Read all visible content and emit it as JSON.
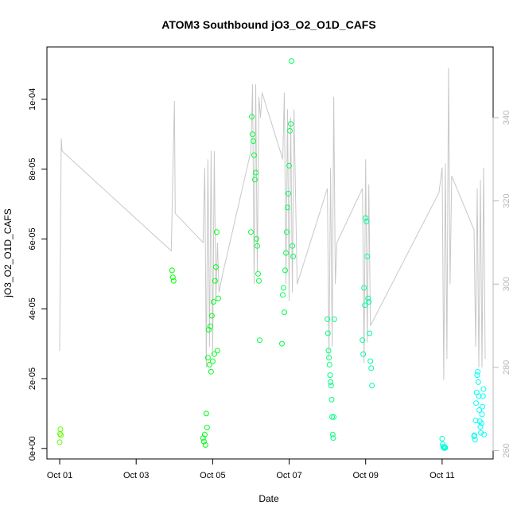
{
  "chart_data": {
    "type": "scatter",
    "title": "ATOM3 Southbound jO3_O2_O1D_CAFS",
    "xlabel": "Date",
    "ylabel": "jO3_O2_O1D_CAFS",
    "x_range": [
      "2017-09-30T16:00",
      "2017-10-12T08:00"
    ],
    "x_ticks": [
      {
        "date": "2017-10-01",
        "label": "Oct 01"
      },
      {
        "date": "2017-10-03",
        "label": "Oct 03"
      },
      {
        "date": "2017-10-05",
        "label": "Oct 05"
      },
      {
        "date": "2017-10-07",
        "label": "Oct 07"
      },
      {
        "date": "2017-10-09",
        "label": "Oct 09"
      },
      {
        "date": "2017-10-11",
        "label": "Oct 11"
      }
    ],
    "y_left": {
      "range": [
        -3e-06,
        0.000115
      ],
      "ticks": [
        {
          "value": 0,
          "label": "0e+00"
        },
        {
          "value": 2e-05,
          "label": "2e-05"
        },
        {
          "value": 4e-05,
          "label": "4e-05"
        },
        {
          "value": 6e-05,
          "label": "6e-05"
        },
        {
          "value": 8e-05,
          "label": "8e-05"
        },
        {
          "value": 0.0001,
          "label": "1e-04"
        }
      ]
    },
    "y_right": {
      "color": "#b8b8b8",
      "range": [
        258,
        357
      ],
      "ticks": [
        {
          "value": 260,
          "label": "260"
        },
        {
          "value": 280,
          "label": "280"
        },
        {
          "value": 300,
          "label": "300"
        },
        {
          "value": 320,
          "label": "320"
        },
        {
          "value": 340,
          "label": "340"
        }
      ]
    },
    "grid": false,
    "marker": "open-circle",
    "color_scale": "green to cyan by time",
    "line_series": {
      "axis": "right",
      "color": "#c8c8c8",
      "points": [
        [
          "2017-10-01T00:00",
          284
        ],
        [
          "2017-10-01T01:00",
          335
        ],
        [
          "2017-10-01T01:30",
          332
        ],
        [
          "2017-10-03T22:00",
          308
        ],
        [
          "2017-10-04T00:00",
          344
        ],
        [
          "2017-10-04T00:30",
          317
        ],
        [
          "2017-10-04T18:00",
          310
        ],
        [
          "2017-10-04T19:00",
          328
        ],
        [
          "2017-10-04T20:00",
          280
        ],
        [
          "2017-10-04T21:00",
          330
        ],
        [
          "2017-10-04T22:00",
          285
        ],
        [
          "2017-10-04T23:00",
          332
        ],
        [
          "2017-10-05T00:00",
          283
        ],
        [
          "2017-10-05T01:00",
          332
        ],
        [
          "2017-10-05T02:00",
          296
        ],
        [
          "2017-10-05T03:00",
          310
        ],
        [
          "2017-10-05T04:00",
          298
        ],
        [
          "2017-10-05T06:00",
          302
        ],
        [
          "2017-10-06T00:00",
          332
        ],
        [
          "2017-10-06T01:00",
          348
        ],
        [
          "2017-10-06T02:00",
          300
        ],
        [
          "2017-10-06T03:00",
          348
        ],
        [
          "2017-10-06T04:00",
          303
        ],
        [
          "2017-10-06T05:00",
          345
        ],
        [
          "2017-10-06T06:00",
          340
        ],
        [
          "2017-10-06T07:00",
          346
        ],
        [
          "2017-10-06T20:00",
          330
        ],
        [
          "2017-10-06T21:00",
          346
        ],
        [
          "2017-10-06T22:00",
          300
        ],
        [
          "2017-10-06T23:00",
          342
        ],
        [
          "2017-10-07T00:00",
          296
        ],
        [
          "2017-10-07T01:00",
          340
        ],
        [
          "2017-10-07T02:00",
          298
        ],
        [
          "2017-10-07T03:00",
          342
        ],
        [
          "2017-10-07T05:00",
          300
        ],
        [
          "2017-10-08T00:00",
          323
        ],
        [
          "2017-10-08T01:00",
          282
        ],
        [
          "2017-10-08T02:00",
          328
        ],
        [
          "2017-10-08T03:00",
          285
        ],
        [
          "2017-10-08T04:00",
          345
        ],
        [
          "2017-10-08T05:00",
          300
        ],
        [
          "2017-10-08T06:00",
          310
        ],
        [
          "2017-10-08T22:00",
          323
        ],
        [
          "2017-10-08T23:00",
          281
        ],
        [
          "2017-10-09T00:00",
          330
        ],
        [
          "2017-10-09T01:00",
          286
        ],
        [
          "2017-10-09T02:00",
          324
        ],
        [
          "2017-10-09T03:00",
          290
        ],
        [
          "2017-10-10T22:00",
          322
        ],
        [
          "2017-10-11T00:00",
          328
        ],
        [
          "2017-10-11T01:00",
          277
        ],
        [
          "2017-10-11T02:00",
          329
        ],
        [
          "2017-10-11T03:00",
          282
        ],
        [
          "2017-10-11T04:00",
          352
        ],
        [
          "2017-10-11T05:00",
          300
        ],
        [
          "2017-10-11T06:00",
          326
        ],
        [
          "2017-10-11T20:00",
          313
        ],
        [
          "2017-10-11T21:00",
          285
        ],
        [
          "2017-10-11T22:00",
          323
        ],
        [
          "2017-10-11T23:00",
          280
        ],
        [
          "2017-10-12T00:00",
          325
        ],
        [
          "2017-10-12T01:00",
          280
        ],
        [
          "2017-10-12T02:00",
          328
        ],
        [
          "2017-10-12T03:00",
          282
        ]
      ]
    },
    "points": [
      [
        "2017-10-01T00:00",
        1.8e-06
      ],
      [
        "2017-10-01T00:15",
        4.2e-06
      ],
      [
        "2017-10-01T00:30",
        5.5e-06
      ],
      [
        "2017-10-01T00:45",
        3.8e-06
      ],
      [
        "2017-10-03T22:30",
        5.1e-05
      ],
      [
        "2017-10-03T23:00",
        4.9e-05
      ],
      [
        "2017-10-03T23:30",
        4.8e-05
      ],
      [
        "2017-10-04T18:00",
        3e-06
      ],
      [
        "2017-10-04T18:30",
        2e-06
      ],
      [
        "2017-10-04T19:00",
        4e-06
      ],
      [
        "2017-10-04T19:30",
        1e-06
      ],
      [
        "2017-10-04T20:00",
        1e-05
      ],
      [
        "2017-10-04T20:30",
        6e-06
      ],
      [
        "2017-10-04T21:00",
        2.6e-05
      ],
      [
        "2017-10-04T21:30",
        3.4e-05
      ],
      [
        "2017-10-04T22:00",
        2.4e-05
      ],
      [
        "2017-10-04T22:30",
        3.5e-05
      ],
      [
        "2017-10-04T23:00",
        2.2e-05
      ],
      [
        "2017-10-04T23:30",
        3.8e-05
      ],
      [
        "2017-10-05T00:00",
        2.5e-05
      ],
      [
        "2017-10-05T00:30",
        4.2e-05
      ],
      [
        "2017-10-05T01:00",
        2.7e-05
      ],
      [
        "2017-10-05T01:30",
        4.8e-05
      ],
      [
        "2017-10-05T02:00",
        5.2e-05
      ],
      [
        "2017-10-05T02:30",
        6.2e-05
      ],
      [
        "2017-10-05T03:00",
        2.8e-05
      ],
      [
        "2017-10-05T03:30",
        4.3e-05
      ],
      [
        "2017-10-06T00:00",
        6.2e-05
      ],
      [
        "2017-10-06T00:30",
        9.5e-05
      ],
      [
        "2017-10-06T01:00",
        9e-05
      ],
      [
        "2017-10-06T01:30",
        8.8e-05
      ],
      [
        "2017-10-06T02:00",
        8.4e-05
      ],
      [
        "2017-10-06T02:30",
        7.7e-05
      ],
      [
        "2017-10-06T03:00",
        7.9e-05
      ],
      [
        "2017-10-06T03:30",
        6e-05
      ],
      [
        "2017-10-06T04:00",
        5.8e-05
      ],
      [
        "2017-10-06T04:30",
        5e-05
      ],
      [
        "2017-10-06T05:00",
        4.8e-05
      ],
      [
        "2017-10-06T05:30",
        3.1e-05
      ],
      [
        "2017-10-06T20:00",
        4.4e-05
      ],
      [
        "2017-10-06T20:30",
        4.6e-05
      ],
      [
        "2017-10-06T21:00",
        3.9e-05
      ],
      [
        "2017-10-06T21:30",
        5.1e-05
      ],
      [
        "2017-10-06T22:00",
        5.6e-05
      ],
      [
        "2017-10-06T22:30",
        6.2e-05
      ],
      [
        "2017-10-06T23:00",
        6.9e-05
      ],
      [
        "2017-10-06T23:30",
        7.3e-05
      ],
      [
        "2017-10-07T00:00",
        8.1e-05
      ],
      [
        "2017-10-07T00:30",
        9.1e-05
      ],
      [
        "2017-10-07T01:00",
        9.3e-05
      ],
      [
        "2017-10-07T01:30",
        0.000111
      ],
      [
        "2017-10-07T02:00",
        5.8e-05
      ],
      [
        "2017-10-07T02:30",
        5.5e-05
      ],
      [
        "2017-10-06T19:30",
        3e-05
      ],
      [
        "2017-10-08T00:00",
        3.7e-05
      ],
      [
        "2017-10-08T00:20",
        3.3e-05
      ],
      [
        "2017-10-08T00:40",
        2.8e-05
      ],
      [
        "2017-10-08T01:00",
        2.6e-05
      ],
      [
        "2017-10-08T01:20",
        2.4e-05
      ],
      [
        "2017-10-08T01:40",
        2.1e-05
      ],
      [
        "2017-10-08T02:00",
        1.9e-05
      ],
      [
        "2017-10-08T02:20",
        1.8e-05
      ],
      [
        "2017-10-08T02:40",
        1.4e-05
      ],
      [
        "2017-10-08T03:00",
        9e-06
      ],
      [
        "2017-10-08T03:20",
        4e-06
      ],
      [
        "2017-10-08T03:40",
        3e-06
      ],
      [
        "2017-10-08T04:00",
        9e-06
      ],
      [
        "2017-10-08T04:20",
        3.7e-05
      ],
      [
        "2017-10-08T22:00",
        3.1e-05
      ],
      [
        "2017-10-08T22:30",
        2.7e-05
      ],
      [
        "2017-10-08T23:00",
        4.6e-05
      ],
      [
        "2017-10-08T23:30",
        4.1e-05
      ],
      [
        "2017-10-09T00:00",
        6.6e-05
      ],
      [
        "2017-10-09T00:30",
        6.5e-05
      ],
      [
        "2017-10-09T01:00",
        5.5e-05
      ],
      [
        "2017-10-09T01:30",
        4.3e-05
      ],
      [
        "2017-10-09T02:00",
        4.2e-05
      ],
      [
        "2017-10-09T02:30",
        3.3e-05
      ],
      [
        "2017-10-09T03:00",
        2.5e-05
      ],
      [
        "2017-10-09T03:30",
        2.3e-05
      ],
      [
        "2017-10-09T04:00",
        1.8e-05
      ],
      [
        "2017-10-11T00:00",
        2.8e-06
      ],
      [
        "2017-10-11T00:20",
        1.2e-06
      ],
      [
        "2017-10-11T00:40",
        5e-07
      ],
      [
        "2017-10-11T01:00",
        2e-07
      ],
      [
        "2017-10-11T01:20",
        1e-07
      ],
      [
        "2017-10-11T01:40",
        4e-07
      ],
      [
        "2017-10-11T02:00",
        2e-07
      ],
      [
        "2017-10-11T20:00",
        3.5e-06
      ],
      [
        "2017-10-11T20:20",
        3.8e-06
      ],
      [
        "2017-10-11T20:40",
        2.5e-06
      ],
      [
        "2017-10-11T21:00",
        8e-06
      ],
      [
        "2017-10-11T21:20",
        1.3e-05
      ],
      [
        "2017-10-11T21:40",
        1.6e-05
      ],
      [
        "2017-10-11T22:00",
        2.1e-05
      ],
      [
        "2017-10-11T22:20",
        2.2e-05
      ],
      [
        "2017-10-11T22:40",
        1.9e-05
      ],
      [
        "2017-10-11T23:00",
        1.5e-05
      ],
      [
        "2017-10-11T23:20",
        1.1e-05
      ],
      [
        "2017-10-11T23:40",
        7.8e-06
      ],
      [
        "2017-10-12T00:00",
        6.2e-06
      ],
      [
        "2017-10-12T00:20",
        4.5e-06
      ],
      [
        "2017-10-12T00:40",
        7.2e-06
      ],
      [
        "2017-10-12T01:00",
        9.8e-06
      ],
      [
        "2017-10-12T01:20",
        1.2e-05
      ],
      [
        "2017-10-12T01:40",
        1.5e-05
      ],
      [
        "2017-10-12T02:00",
        1.7e-05
      ],
      [
        "2017-10-12T02:20",
        4e-06
      ]
    ]
  }
}
